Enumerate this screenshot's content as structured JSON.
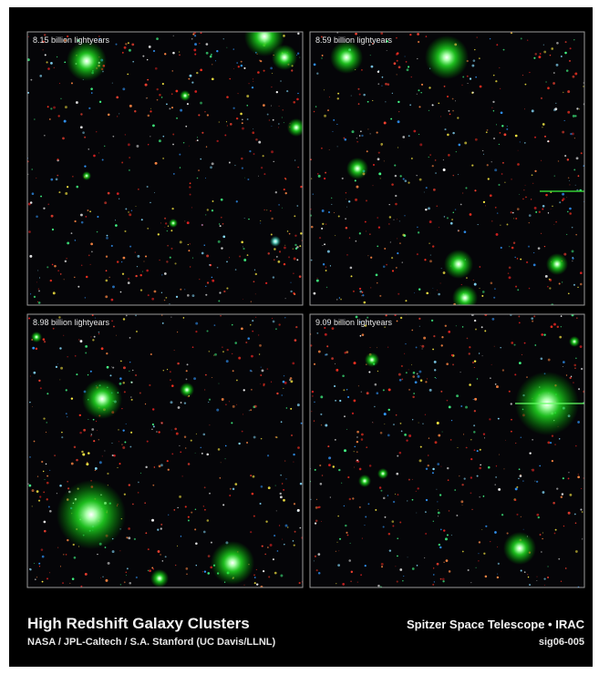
{
  "panels": [
    {
      "label": "8.15 billion lightyears"
    },
    {
      "label": "8.59 billion lightyears"
    },
    {
      "label": "8.98 billion lightyears"
    },
    {
      "label": "9.09 billion lightyears"
    }
  ],
  "caption": {
    "title": "High Redshift Galaxy Clusters",
    "credit": "NASA / JPL-Caltech / S.A. Stanford (UC Davis/LLNL)",
    "instrument": "Spitzer Space Telescope • IRAC",
    "id": "sig06-005"
  }
}
